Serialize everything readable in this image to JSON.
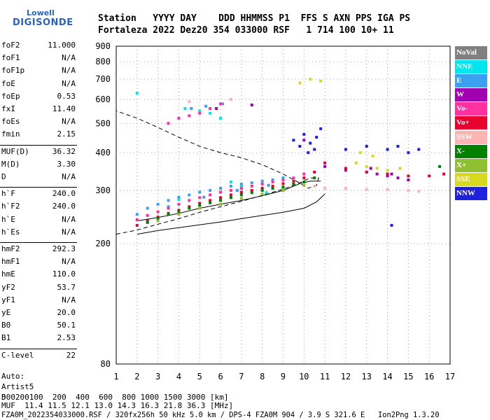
{
  "logo": {
    "line1": "Lowell",
    "line2": "DIGISONDE"
  },
  "header": {
    "labels": "Station   YYYY DAY    DDD HHMMSS P1  FFS S AXN PPS IGA PS",
    "values": "Fortaleza 2022 Dez20 354 033000 RSF   1 714 100 10+ 11"
  },
  "params": [
    {
      "k": "foF2",
      "v": "11.000"
    },
    {
      "k": "foF1",
      "v": "N/A"
    },
    {
      "k": "foF1p",
      "v": "N/A"
    },
    {
      "k": "foE",
      "v": "N/A"
    },
    {
      "k": "foEp",
      "v": "0.53"
    },
    {
      "k": "fxI",
      "v": "11.40"
    },
    {
      "k": "foEs",
      "v": "N/A"
    },
    {
      "k": "fmin",
      "v": "2.15"
    },
    {
      "k": "MUF(D)",
      "v": "36.32",
      "sep": true
    },
    {
      "k": "M(D)",
      "v": "3.30"
    },
    {
      "k": "D",
      "v": "N/A"
    },
    {
      "k": "h`F",
      "v": "240.0",
      "sep": true
    },
    {
      "k": "h`F2",
      "v": "240.0"
    },
    {
      "k": "h`E",
      "v": "N/A"
    },
    {
      "k": "h`Es",
      "v": "N/A"
    },
    {
      "k": "hmF2",
      "v": "292.3",
      "sep": true
    },
    {
      "k": "hmF1",
      "v": "N/A"
    },
    {
      "k": "hmE",
      "v": "110.0"
    },
    {
      "k": "yF2",
      "v": "53.7"
    },
    {
      "k": "yF1",
      "v": "N/A"
    },
    {
      "k": "yE",
      "v": "20.0"
    },
    {
      "k": "B0",
      "v": "50.1"
    },
    {
      "k": "B1",
      "v": "2.53"
    },
    {
      "k": "C-level",
      "v": "22",
      "sep": true
    }
  ],
  "auto": [
    "Auto:",
    "Artist5",
    "500200"
  ],
  "legend": [
    {
      "label": "NoVal",
      "color": "#808080"
    },
    {
      "label": "NNE",
      "color": "#00e5ee"
    },
    {
      "label": "E",
      "color": "#3ca0f0"
    },
    {
      "label": "W",
      "color": "#a000b0"
    },
    {
      "label": "Vo-",
      "color": "#ff30a0"
    },
    {
      "label": "Vo+",
      "color": "#e80030"
    },
    {
      "label": "SSW",
      "color": "#ffb4b4"
    },
    {
      "label": "X-",
      "color": "#008000"
    },
    {
      "label": "X+",
      "color": "#90c030"
    },
    {
      "label": "SSE",
      "color": "#d8d820"
    },
    {
      "label": "NNW",
      "color": "#2020e0"
    }
  ],
  "footer": {
    "line1": "D     100  200  400  600  800 1000 1500 3000 [km]",
    "line2": "MUF  11.4 11.5 12.1 13.0 14.3 16.3 21.8 36.3 [MHz]",
    "line3": "FZA0M_2022354033000.RSF / 320fx256h 50 kHz 5.0 km / DPS-4 FZA0M 904 / 3.9 S 321.6 E   Ion2Png 1.3.20"
  },
  "chart_data": {
    "type": "scatter",
    "title": "",
    "xlabel": "",
    "ylabel": "",
    "xlim": [
      1,
      17
    ],
    "ylim": [
      80,
      900
    ],
    "y_scale": "log",
    "x_ticks": [
      1,
      2,
      3,
      4,
      5,
      6,
      7,
      8,
      9,
      10,
      11,
      12,
      13,
      14,
      15,
      16,
      17
    ],
    "y_ticks": [
      80,
      200,
      300,
      400,
      500,
      600,
      700,
      800,
      900
    ],
    "grid": true,
    "series": [
      {
        "name": "NNE",
        "color": "#00e5ee",
        "points": [
          [
            2.0,
            630
          ],
          [
            4.3,
            560
          ],
          [
            5.0,
            550
          ],
          [
            5.5,
            540
          ],
          [
            6.0,
            520
          ],
          [
            7.0,
            310
          ],
          [
            8.2,
            295
          ],
          [
            9.0,
            305
          ],
          [
            6.5,
            320
          ],
          [
            4.0,
            280
          ]
        ]
      },
      {
        "name": "E",
        "color": "#3ca0f0",
        "points": [
          [
            2.0,
            250
          ],
          [
            2.5,
            262
          ],
          [
            3.0,
            270
          ],
          [
            3.5,
            278
          ],
          [
            4.0,
            285
          ],
          [
            4.5,
            290
          ],
          [
            5.0,
            296
          ],
          [
            5.5,
            300
          ],
          [
            6.0,
            305
          ],
          [
            6.5,
            310
          ],
          [
            7.0,
            315
          ],
          [
            7.5,
            318
          ],
          [
            8.0,
            322
          ],
          [
            8.5,
            325
          ],
          [
            9.0,
            330
          ],
          [
            3.5,
            265
          ],
          [
            5.2,
            285
          ],
          [
            6.8,
            300
          ],
          [
            8.3,
            312
          ],
          [
            4.6,
            560
          ],
          [
            5.3,
            570
          ],
          [
            6.1,
            580
          ]
        ]
      },
      {
        "name": "W",
        "color": "#a000b0",
        "points": [
          [
            10.0,
            440
          ],
          [
            11.0,
            360
          ],
          [
            12.0,
            350
          ],
          [
            13.0,
            345
          ],
          [
            13.5,
            340
          ],
          [
            14.0,
            335
          ],
          [
            14.5,
            330
          ],
          [
            15.0,
            325
          ],
          [
            13.2,
            355
          ],
          [
            14.2,
            340
          ],
          [
            5.8,
            560
          ],
          [
            7.5,
            575
          ]
        ]
      },
      {
        "name": "Vo-",
        "color": "#ff30a0",
        "points": [
          [
            2.0,
            240
          ],
          [
            2.5,
            248
          ],
          [
            3.0,
            255
          ],
          [
            3.5,
            262
          ],
          [
            4.0,
            270
          ],
          [
            4.5,
            278
          ],
          [
            5.0,
            284
          ],
          [
            5.5,
            290
          ],
          [
            6.0,
            296
          ],
          [
            6.5,
            300
          ],
          [
            7.0,
            305
          ],
          [
            7.5,
            310
          ],
          [
            8.0,
            315
          ],
          [
            8.5,
            320
          ],
          [
            9.0,
            325
          ],
          [
            9.5,
            330
          ],
          [
            10.0,
            340
          ],
          [
            4.0,
            520
          ],
          [
            4.5,
            530
          ],
          [
            5.0,
            540
          ],
          [
            5.5,
            560
          ],
          [
            6.0,
            580
          ],
          [
            6.5,
            600
          ],
          [
            3.5,
            500
          ]
        ]
      },
      {
        "name": "Vo+",
        "color": "#e80030",
        "points": [
          [
            2.0,
            230
          ],
          [
            2.5,
            238
          ],
          [
            3.0,
            245
          ],
          [
            3.5,
            252
          ],
          [
            4.0,
            258
          ],
          [
            4.5,
            265
          ],
          [
            5.0,
            272
          ],
          [
            5.5,
            278
          ],
          [
            6.0,
            284
          ],
          [
            6.5,
            290
          ],
          [
            7.0,
            296
          ],
          [
            7.5,
            300
          ],
          [
            8.0,
            305
          ],
          [
            8.5,
            310
          ],
          [
            9.0,
            316
          ],
          [
            9.5,
            322
          ],
          [
            10.0,
            330
          ],
          [
            10.5,
            345
          ],
          [
            11.0,
            370
          ],
          [
            12.0,
            355
          ],
          [
            13.0,
            345
          ],
          [
            14.0,
            340
          ],
          [
            15.0,
            335
          ],
          [
            16.0,
            335
          ],
          [
            16.7,
            340
          ]
        ]
      },
      {
        "name": "SSW",
        "color": "#ffb4b4",
        "points": [
          [
            10.5,
            310
          ],
          [
            11.0,
            305
          ],
          [
            12.0,
            305
          ],
          [
            13.0,
            302
          ],
          [
            14.0,
            302
          ],
          [
            15.0,
            300
          ],
          [
            15.5,
            298
          ],
          [
            4.5,
            590
          ],
          [
            6.5,
            600
          ]
        ]
      },
      {
        "name": "X-",
        "color": "#008000",
        "points": [
          [
            2.5,
            235
          ],
          [
            3.0,
            242
          ],
          [
            3.5,
            250
          ],
          [
            4.0,
            255
          ],
          [
            4.5,
            262
          ],
          [
            5.0,
            268
          ],
          [
            5.5,
            273
          ],
          [
            6.0,
            278
          ],
          [
            6.5,
            284
          ],
          [
            7.0,
            290
          ],
          [
            7.5,
            295
          ],
          [
            8.0,
            300
          ],
          [
            8.5,
            305
          ],
          [
            9.0,
            308
          ],
          [
            9.5,
            315
          ],
          [
            10.0,
            320
          ],
          [
            10.5,
            330
          ],
          [
            16.5,
            360
          ]
        ]
      },
      {
        "name": "X+",
        "color": "#90c030",
        "points": [
          [
            3.0,
            238
          ],
          [
            4.0,
            250
          ],
          [
            5.0,
            262
          ],
          [
            6.0,
            270
          ],
          [
            7.0,
            282
          ],
          [
            8.0,
            292
          ],
          [
            9.0,
            300
          ],
          [
            10.0,
            312
          ]
        ]
      },
      {
        "name": "SSE",
        "color": "#d8d820",
        "points": [
          [
            9.8,
            680
          ],
          [
            10.3,
            700
          ],
          [
            10.8,
            690
          ],
          [
            12.5,
            370
          ],
          [
            13.0,
            360
          ],
          [
            13.5,
            355
          ],
          [
            14.0,
            350
          ],
          [
            12.7,
            400
          ],
          [
            13.3,
            390
          ],
          [
            14.6,
            355
          ]
        ]
      },
      {
        "name": "NNW",
        "color": "#2020e0",
        "points": [
          [
            9.5,
            440
          ],
          [
            10.0,
            460
          ],
          [
            10.3,
            430
          ],
          [
            10.6,
            450
          ],
          [
            10.8,
            480
          ],
          [
            10.2,
            400
          ],
          [
            9.8,
            420
          ],
          [
            10.5,
            410
          ],
          [
            12.0,
            410
          ],
          [
            13.0,
            420
          ],
          [
            14.0,
            410
          ],
          [
            14.5,
            420
          ],
          [
            15.0,
            400
          ],
          [
            15.5,
            410
          ],
          [
            14.2,
            230
          ]
        ]
      }
    ],
    "traces": [
      {
        "name": "virtual_height_profile",
        "style": "dashed",
        "points": [
          [
            1.0,
            215
          ],
          [
            2.0,
            222
          ],
          [
            3.0,
            232
          ],
          [
            4.0,
            242
          ],
          [
            5.0,
            254
          ],
          [
            6.0,
            265
          ],
          [
            7.0,
            276
          ],
          [
            8.0,
            289
          ],
          [
            9.0,
            303
          ],
          [
            9.8,
            318
          ],
          [
            10.3,
            330
          ],
          [
            10.7,
            330
          ],
          [
            10.6,
            312
          ],
          [
            10.2,
            305
          ],
          [
            9.7,
            320
          ],
          [
            9.0,
            340
          ],
          [
            8.0,
            365
          ],
          [
            7.0,
            385
          ],
          [
            6.0,
            400
          ],
          [
            5.0,
            420
          ],
          [
            4.0,
            450
          ],
          [
            3.0,
            485
          ],
          [
            2.0,
            520
          ],
          [
            1.0,
            550
          ]
        ]
      },
      {
        "name": "true_height_profile",
        "style": "solid",
        "points": [
          [
            2.0,
            215
          ],
          [
            3.0,
            221
          ],
          [
            4.0,
            226
          ],
          [
            5.0,
            231
          ],
          [
            6.0,
            236
          ],
          [
            7.0,
            242
          ],
          [
            8.0,
            248
          ],
          [
            9.0,
            254
          ],
          [
            10.0,
            262
          ],
          [
            10.6,
            275
          ],
          [
            11.0,
            292
          ]
        ]
      },
      {
        "name": "model_trace",
        "style": "solid",
        "points": [
          [
            2.0,
            238
          ],
          [
            3.0,
            244
          ],
          [
            4.0,
            252
          ],
          [
            5.0,
            262
          ],
          [
            6.0,
            270
          ],
          [
            7.0,
            278
          ],
          [
            8.0,
            288
          ],
          [
            9.0,
            300
          ],
          [
            9.8,
            316
          ],
          [
            10.3,
            322
          ],
          [
            10.8,
            322
          ]
        ]
      }
    ]
  }
}
